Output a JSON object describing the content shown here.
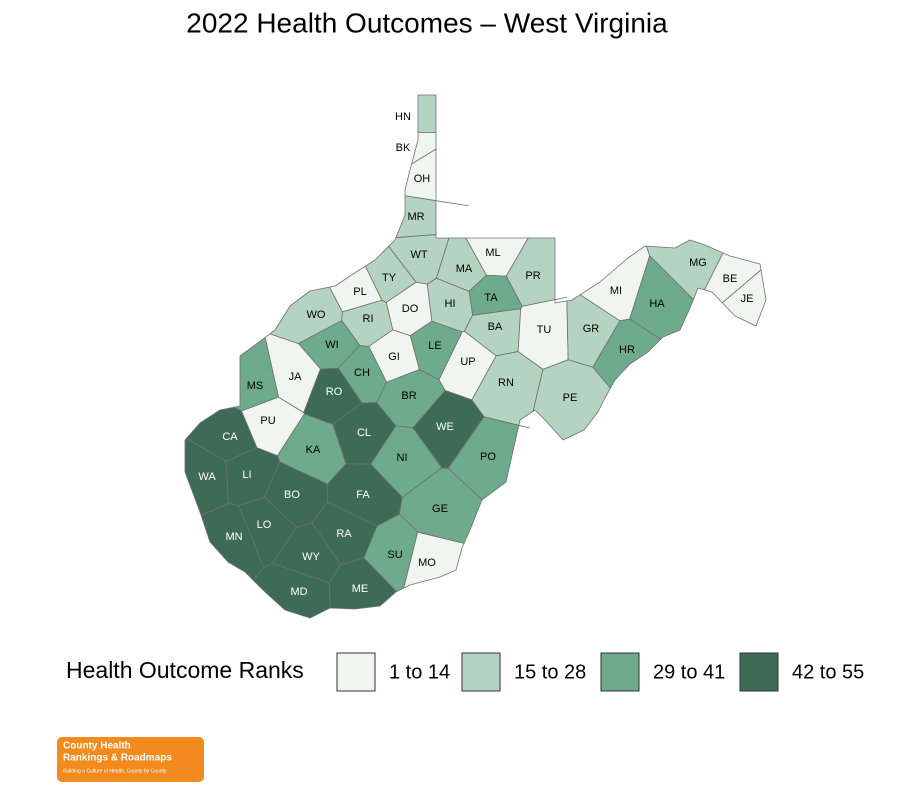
{
  "title": "2022 Health Outcomes – West Virginia",
  "counties": [
    {
      "label": "HN",
      "rank_group": 1
    },
    {
      "label": "BK",
      "rank_group": 0
    },
    {
      "label": "OH",
      "rank_group": 0
    },
    {
      "label": "MR",
      "rank_group": 1
    },
    {
      "label": "WT",
      "rank_group": 1
    },
    {
      "label": "ML",
      "rank_group": 0
    },
    {
      "label": "MA",
      "rank_group": 1
    },
    {
      "label": "PR",
      "rank_group": 1
    },
    {
      "label": "TY",
      "rank_group": 1
    },
    {
      "label": "PL",
      "rank_group": 0
    },
    {
      "label": "TA",
      "rank_group": 2
    },
    {
      "label": "HI",
      "rank_group": 1
    },
    {
      "label": "DO",
      "rank_group": 0
    },
    {
      "label": "WO",
      "rank_group": 1
    },
    {
      "label": "RI",
      "rank_group": 1
    },
    {
      "label": "BA",
      "rank_group": 1
    },
    {
      "label": "TU",
      "rank_group": 0
    },
    {
      "label": "GR",
      "rank_group": 1
    },
    {
      "label": "MI",
      "rank_group": 0
    },
    {
      "label": "HA",
      "rank_group": 2
    },
    {
      "label": "MG",
      "rank_group": 1
    },
    {
      "label": "BE",
      "rank_group": 0
    },
    {
      "label": "JE",
      "rank_group": 0
    },
    {
      "label": "WI",
      "rank_group": 2
    },
    {
      "label": "LE",
      "rank_group": 2
    },
    {
      "label": "GI",
      "rank_group": 0
    },
    {
      "label": "UP",
      "rank_group": 0
    },
    {
      "label": "JA",
      "rank_group": 0
    },
    {
      "label": "CH",
      "rank_group": 2
    },
    {
      "label": "HR",
      "rank_group": 2
    },
    {
      "label": "MS",
      "rank_group": 2
    },
    {
      "label": "RO",
      "rank_group": 3
    },
    {
      "label": "BR",
      "rank_group": 2
    },
    {
      "label": "RN",
      "rank_group": 1
    },
    {
      "label": "PE",
      "rank_group": 1
    },
    {
      "label": "PU",
      "rank_group": 0
    },
    {
      "label": "CA",
      "rank_group": 3
    },
    {
      "label": "CL",
      "rank_group": 3
    },
    {
      "label": "WE",
      "rank_group": 3
    },
    {
      "label": "KA",
      "rank_group": 2
    },
    {
      "label": "NI",
      "rank_group": 2
    },
    {
      "label": "PO",
      "rank_group": 2
    },
    {
      "label": "WA",
      "rank_group": 3
    },
    {
      "label": "LI",
      "rank_group": 3
    },
    {
      "label": "BO",
      "rank_group": 3
    },
    {
      "label": "FA",
      "rank_group": 3
    },
    {
      "label": "GE",
      "rank_group": 2
    },
    {
      "label": "LO",
      "rank_group": 3
    },
    {
      "label": "MN",
      "rank_group": 3
    },
    {
      "label": "RA",
      "rank_group": 3
    },
    {
      "label": "WY",
      "rank_group": 3
    },
    {
      "label": "SU",
      "rank_group": 2
    },
    {
      "label": "MO",
      "rank_group": 0
    },
    {
      "label": "MD",
      "rank_group": 3
    },
    {
      "label": "ME",
      "rank_group": 3
    }
  ],
  "legend": {
    "title": "Health Outcome Ranks",
    "items": [
      {
        "label": "1 to 14",
        "color": "#f1f5f2"
      },
      {
        "label": "15 to 28",
        "color": "#b4d3c1"
      },
      {
        "label": "29 to 41",
        "color": "#6eab8d"
      },
      {
        "label": "42 to 55",
        "color": "#3d6b55"
      }
    ]
  },
  "logo": {
    "lines": [
      "County Health",
      "Rankings & Roadmaps",
      "Building a Culture of Health, County by County"
    ]
  }
}
